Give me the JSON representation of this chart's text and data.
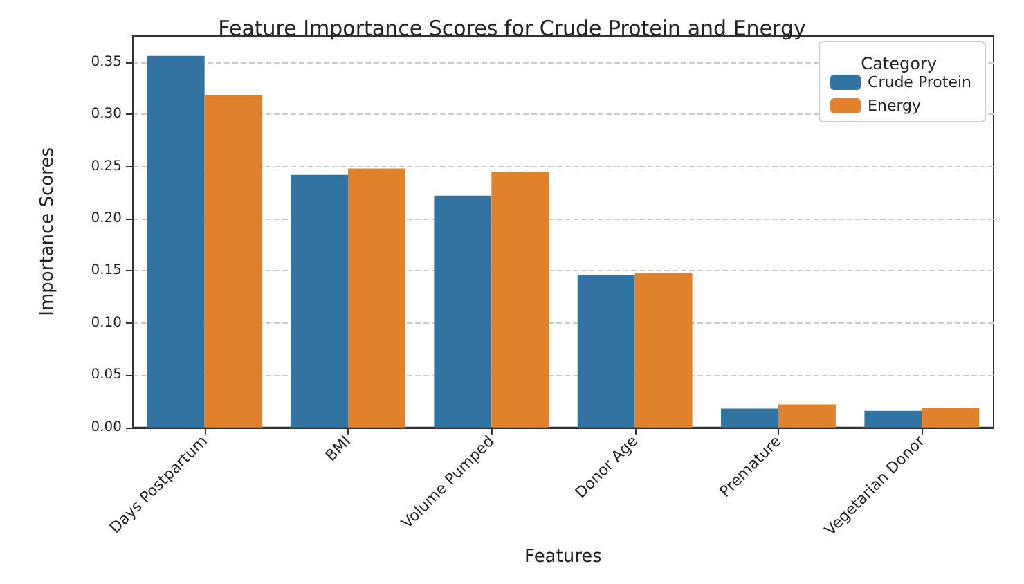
{
  "chart_data": {
    "type": "bar",
    "title": "Feature Importance Scores for Crude Protein and Energy",
    "xlabel": "Features",
    "ylabel": "Importance Scores",
    "legend_title": "Category",
    "categories": [
      "Days Postpartum",
      "BMI",
      "Volume Pumped",
      "Donor Age",
      "Premature",
      "Vegetarian Donor"
    ],
    "series": [
      {
        "name": "Crude Protein",
        "color": "#3274a1",
        "values": [
          0.356,
          0.242,
          0.222,
          0.146,
          0.018,
          0.016
        ]
      },
      {
        "name": "Energy",
        "color": "#e1812c",
        "values": [
          0.318,
          0.248,
          0.245,
          0.148,
          0.022,
          0.019
        ]
      }
    ],
    "ylim": [
      0,
      0.375
    ],
    "yticks": [
      {
        "value": 0,
        "label": "0.00"
      },
      0.05,
      {
        "value": 0.1,
        "label": "0.10"
      },
      0.15,
      {
        "value": 0.2,
        "label": "0.20"
      },
      0.25,
      {
        "value": 0.3,
        "label": "0.30"
      },
      0.35
    ],
    "grid": "y",
    "legend": "top right"
  }
}
